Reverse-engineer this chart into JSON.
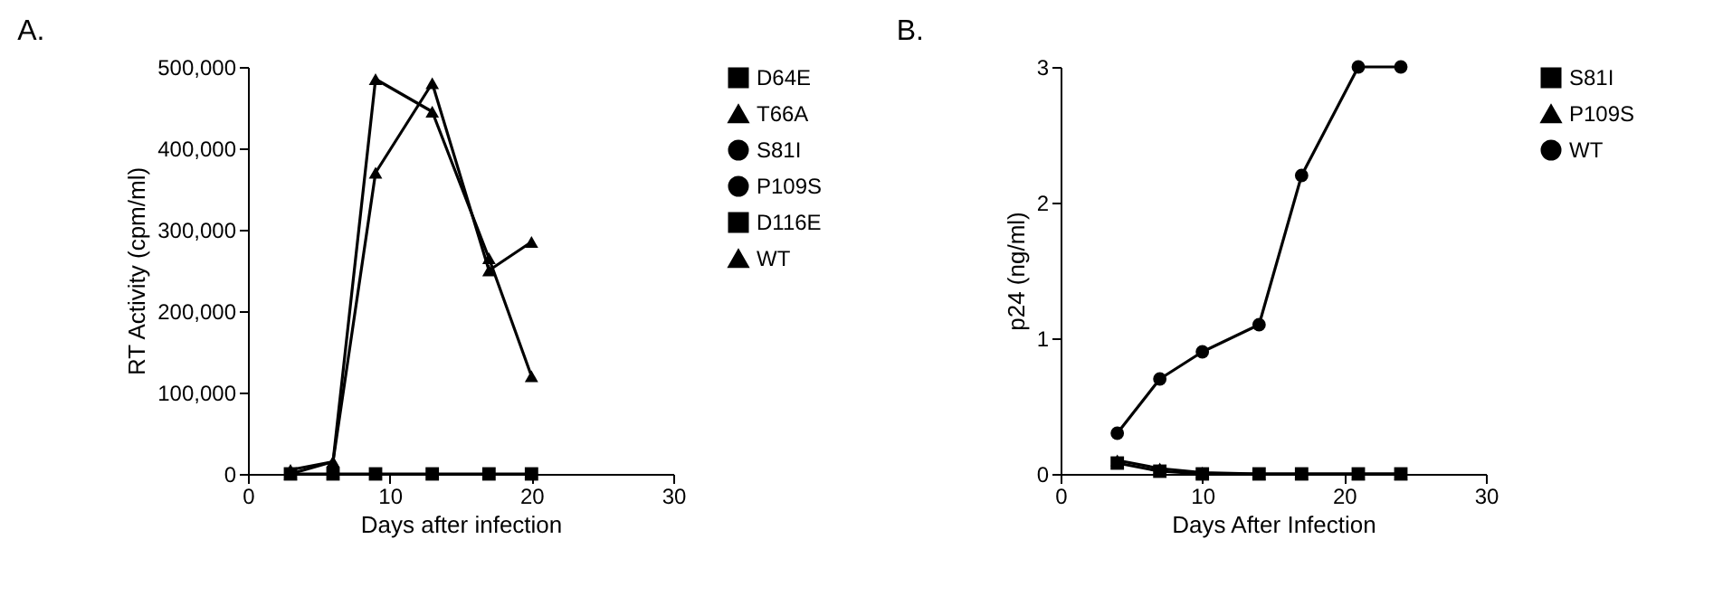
{
  "chart_data": [
    {
      "type": "line",
      "title": "A.",
      "xlabel": "Days after infection",
      "ylabel": "RT Activity (cpm/ml)",
      "x": [
        3,
        6,
        9,
        13,
        17,
        20
      ],
      "xlim": [
        0,
        30
      ],
      "xticks": [
        0,
        10,
        20,
        30
      ],
      "ylim": [
        0,
        500000
      ],
      "yticks": [
        0,
        {
          "value": 100000,
          "label": "100,000"
        },
        {
          "value": 200000,
          "label": "200,000"
        },
        {
          "value": 300000,
          "label": "300,000"
        },
        {
          "value": 400000,
          "label": "400,000"
        },
        {
          "value": 500000,
          "label": "500,000"
        }
      ],
      "grid": false,
      "legend": "right",
      "line_style": "solid",
      "series": [
        {
          "name": "D64E",
          "color": "#000000",
          "marker": "square",
          "values": [
            null,
            null,
            null,
            null,
            null,
            null
          ]
        },
        {
          "name": "T66A",
          "color": "#000000",
          "marker": "triangle",
          "values": [
            0,
            15000,
            370000,
            480000,
            250000,
            285000
          ]
        },
        {
          "name": "S81I",
          "color": "#000000",
          "marker": "circle",
          "values": [
            null,
            null,
            null,
            null,
            null,
            null
          ]
        },
        {
          "name": "P109S",
          "color": "#000000",
          "marker": "circle",
          "values": [
            null,
            null,
            null,
            null,
            null,
            null
          ]
        },
        {
          "name": "D116E",
          "color": "#000000",
          "marker": "square",
          "values": [
            0,
            0,
            0,
            0,
            0,
            0
          ]
        },
        {
          "name": "WT",
          "color": "#000000",
          "marker": "triangle",
          "values": [
            5000,
            15000,
            485000,
            445000,
            265000,
            120000
          ]
        }
      ]
    },
    {
      "type": "line",
      "title": "B.",
      "xlabel": "Days After Infection",
      "ylabel": "p24 (ng/ml)",
      "x": [
        4,
        7,
        10,
        14,
        17,
        21,
        24
      ],
      "xlim": [
        0,
        30
      ],
      "xticks": [
        0,
        10,
        20,
        30
      ],
      "ylim": [
        0,
        3
      ],
      "yticks": [
        0,
        1,
        2,
        3
      ],
      "grid": false,
      "legend": "right",
      "line_style": "solid",
      "series": [
        {
          "name": "S81I",
          "color": "#000000",
          "marker": "square",
          "values": [
            0.08,
            0.02,
            0,
            0,
            0,
            0,
            0
          ]
        },
        {
          "name": "P109S",
          "color": "#000000",
          "marker": "triangle",
          "values": [
            0.1,
            0.04,
            0.01,
            0,
            0,
            0,
            0
          ]
        },
        {
          "name": "WT",
          "color": "#000000",
          "marker": "circle",
          "values": [
            0.3,
            0.7,
            0.9,
            1.1,
            2.2,
            3.0,
            3.0
          ]
        }
      ]
    }
  ]
}
